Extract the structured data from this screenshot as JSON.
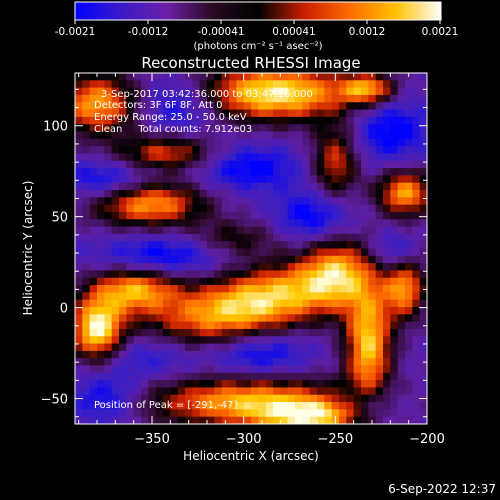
{
  "colorbar": {
    "tick_labels": [
      "-0.0021",
      "-0.0012",
      "-0.00041",
      "0.00041",
      "0.0012",
      "0.0021"
    ],
    "units_label": "(photons cm⁻² s⁻¹ asec⁻²)",
    "colors": [
      "#0000ff",
      "#3b1ac8",
      "#6b1fa8",
      "#2a0a22",
      "#000000",
      "#c81e00",
      "#ff6a00",
      "#ffc000",
      "#ffffff"
    ]
  },
  "footer": {
    "timestamp": "6-Sep-2022 12:37"
  },
  "chart_data": {
    "type": "heatmap",
    "title": "Reconstructed RHESSI Image",
    "xlabel": "Heliocentric X (arcsec)",
    "ylabel": "Heliocentric Y (arcsec)",
    "xlim": [
      -392,
      -200
    ],
    "ylim": [
      -64,
      129
    ],
    "x_ticks": [
      -350,
      -300,
      -250,
      -200
    ],
    "y_ticks": [
      -50,
      0,
      50,
      100
    ],
    "x_tick_labels": [
      "−350",
      "−300",
      "−250",
      "−200"
    ],
    "y_tick_labels": [
      "−50",
      "0",
      "50",
      "100"
    ],
    "colorbar_range": [
      -0.0021,
      0.0021
    ],
    "annotations": [
      "3-Sep-2017 03:42:36.000 to 03:47:16.000",
      "Detectors: 3F 6F 8F, Att 0",
      "Energy Range: 25.0 - 50.0 keV",
      "Clean     Total counts: 7.912e03",
      "Position of Peak = [-291,-47]"
    ],
    "peak_position": [
      -291,
      -47
    ],
    "bright_sources": [
      {
        "x": -295,
        "y": 2,
        "sx": 42,
        "sy": 13,
        "v": 1.0,
        "rot": -15
      },
      {
        "x": -283,
        "y": 118,
        "sx": 30,
        "sy": 11,
        "v": 1.0
      },
      {
        "x": -360,
        "y": 10,
        "sx": 17,
        "sy": 9,
        "v": 0.8
      },
      {
        "x": -380,
        "y": -12,
        "sx": 10,
        "sy": 12,
        "v": 1.0
      },
      {
        "x": -352,
        "y": 57,
        "sx": 22,
        "sy": 9,
        "v": 0.8
      },
      {
        "x": -380,
        "y": 112,
        "sx": 16,
        "sy": 12,
        "v": 0.8
      },
      {
        "x": -342,
        "y": 85,
        "sx": 20,
        "sy": 7,
        "v": 0.6
      },
      {
        "x": -305,
        "y": 38,
        "sx": 16,
        "sy": 7,
        "v": 0.35
      },
      {
        "x": -250,
        "y": 20,
        "sx": 12,
        "sy": 14,
        "v": 0.5
      },
      {
        "x": -232,
        "y": -20,
        "sx": 9,
        "sy": 22,
        "v": 0.9
      },
      {
        "x": -212,
        "y": 10,
        "sx": 8,
        "sy": 12,
        "v": 0.7
      },
      {
        "x": -212,
        "y": 63,
        "sx": 11,
        "sy": 9,
        "v": 0.8
      },
      {
        "x": -250,
        "y": 80,
        "sx": 9,
        "sy": 14,
        "v": 0.6
      },
      {
        "x": -232,
        "y": 120,
        "sx": 10,
        "sy": 6,
        "v": 0.7
      },
      {
        "x": -297,
        "y": -52,
        "sx": 40,
        "sy": 10,
        "v": 0.85
      },
      {
        "x": -262,
        "y": -60,
        "sx": 20,
        "sy": 6,
        "v": 0.7
      }
    ],
    "dark_sources": [
      {
        "x": -345,
        "y": 28,
        "sx": 24,
        "sy": 8
      },
      {
        "x": -375,
        "y": 70,
        "sx": 17,
        "sy": 8
      },
      {
        "x": -298,
        "y": 77,
        "sx": 20,
        "sy": 9
      },
      {
        "x": -352,
        "y": -25,
        "sx": 21,
        "sy": 10
      },
      {
        "x": -292,
        "y": -25,
        "sx": 19,
        "sy": 9
      },
      {
        "x": -220,
        "y": 98,
        "sx": 15,
        "sy": 13
      },
      {
        "x": -218,
        "y": 30,
        "sx": 9,
        "sy": 8
      },
      {
        "x": -232,
        "y": -55,
        "sx": 11,
        "sy": 8
      },
      {
        "x": -375,
        "y": -50,
        "sx": 14,
        "sy": 10
      },
      {
        "x": -335,
        "y": 112,
        "sx": 16,
        "sy": 11
      },
      {
        "x": -262,
        "y": 50,
        "sx": 14,
        "sy": 10
      }
    ]
  }
}
